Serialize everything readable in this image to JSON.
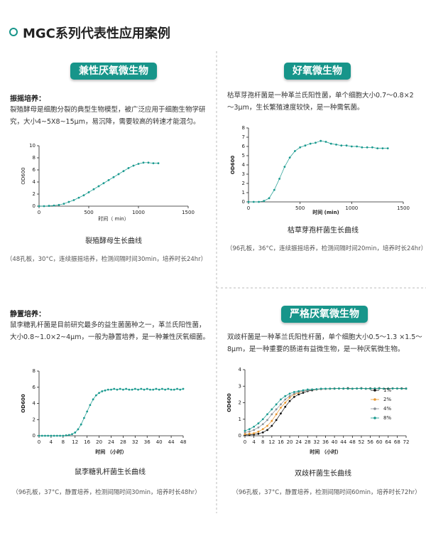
{
  "header": {
    "title": "MGC系列代表性应用案例"
  },
  "sections": [
    {
      "badge": "兼性厌氧微生物",
      "subheading": "振摇培养：",
      "description": "裂殖酵母是细胞分裂的典型生物模型，被广泛应用于细胞生物学研究，大小4~5X8~15μm，易沉降，需要较高的转速才能混匀。",
      "caption": "裂殖酵母生长曲线",
      "note": "（48孔板，30°C，连续振摇培养，检测间隔时间30min，培养时长24hr）"
    },
    {
      "badge": "好氧微生物",
      "description": "枯草芽孢杆菌是一种革兰氏阳性菌，单个细胞大小0.7～0.8×2～3μm，生长繁殖速度较快，是一种需氧菌。",
      "caption": "枯草芽孢杆菌生长曲线",
      "note": "（96孔板，36°C，连续振摇培养，检测间隔时间20min，培养时长24hr）"
    },
    {
      "subheading": "静置培养：",
      "description": "鼠李糖乳杆菌是目前研究最多的益生菌菌种之一，革兰氏阳性菌，大小0.8~1.0×2~4μm，一般为静置培养，是一种兼性厌氧细菌。",
      "caption": "鼠李糖乳杆菌生长曲线",
      "note": "（96孔板，37°C，静置培养，检测间隔时间30min，培养时长48hr）"
    },
    {
      "badge": "严格厌氧微生物",
      "description": "双歧杆菌是一种革兰氏阳性杆菌，单个细胞大小0.5～1.3 ×1.5～8μm，是一种重要的肠道有益微生物，是一种厌氧微生物。",
      "caption": "双歧杆菌生长曲线",
      "note": "（96孔板，37°C，静置培养，检测间隔时间60min，培养时长72hr）"
    }
  ],
  "chart_data": [
    {
      "type": "line",
      "x_label": "时间（ min）",
      "y_label": "OD600",
      "color": "#1a9a8f",
      "x": [
        0,
        50,
        100,
        150,
        200,
        250,
        300,
        350,
        400,
        450,
        500,
        550,
        600,
        650,
        700,
        750,
        800,
        850,
        900,
        950,
        1000,
        1050,
        1100,
        1150,
        1200
      ],
      "values": [
        0,
        0,
        0.05,
        0.1,
        0.2,
        0.4,
        0.7,
        1.0,
        1.4,
        1.8,
        2.3,
        2.8,
        3.3,
        3.8,
        4.3,
        4.8,
        5.3,
        5.8,
        6.3,
        6.7,
        7.0,
        7.2,
        7.2,
        7.1,
        7.1
      ],
      "xlim": [
        0,
        1500
      ],
      "ylim": [
        0,
        10
      ],
      "xticks": [
        0,
        500,
        1000,
        1500
      ],
      "yticks": [
        0,
        2,
        4,
        6,
        8,
        10
      ]
    },
    {
      "type": "line",
      "x_label": "时间 (min)",
      "y_label": "OD600",
      "color": "#1a9a8f",
      "x": [
        0,
        50,
        100,
        150,
        200,
        250,
        300,
        350,
        400,
        450,
        500,
        550,
        600,
        650,
        700,
        750,
        800,
        850,
        900,
        950,
        1000,
        1050,
        1100,
        1150,
        1200,
        1250,
        1300,
        1350
      ],
      "values": [
        0,
        0,
        0,
        0.1,
        0.4,
        1.3,
        2.5,
        3.8,
        4.8,
        5.5,
        5.9,
        6.1,
        6.3,
        6.4,
        6.6,
        6.5,
        6.3,
        6.2,
        6.1,
        6.1,
        6.0,
        6.0,
        5.9,
        5.9,
        5.9,
        5.8,
        5.8,
        5.8
      ],
      "xlim": [
        0,
        1500
      ],
      "ylim": [
        0,
        8
      ],
      "xticks": [
        0,
        500,
        1000,
        1500
      ],
      "yticks": [
        0,
        1,
        2,
        3,
        4,
        5,
        6,
        7,
        8
      ]
    },
    {
      "type": "line",
      "x_label": "时间 （小时）",
      "y_label": "OD600",
      "color": "#1a9a8f",
      "x": [
        0,
        1,
        2,
        3,
        4,
        5,
        6,
        7,
        8,
        9,
        10,
        11,
        12,
        13,
        14,
        15,
        16,
        17,
        18,
        19,
        20,
        21,
        22,
        23,
        24,
        25,
        26,
        27,
        28,
        29,
        30,
        31,
        32,
        33,
        34,
        35,
        36,
        37,
        38,
        39,
        40,
        41,
        42,
        43,
        44,
        45,
        46,
        47,
        48
      ],
      "values": [
        0,
        0,
        0,
        0,
        0,
        0,
        0,
        0,
        0,
        0.05,
        0.1,
        0.2,
        0.4,
        0.8,
        1.4,
        2.2,
        3.0,
        3.8,
        4.5,
        5.0,
        5.3,
        5.5,
        5.6,
        5.7,
        5.7,
        5.8,
        5.7,
        5.8,
        5.7,
        5.8,
        5.7,
        5.7,
        5.8,
        5.7,
        5.8,
        5.7,
        5.8,
        5.7,
        5.7,
        5.8,
        5.7,
        5.8,
        5.7,
        5.8,
        5.7,
        5.7,
        5.8,
        5.7,
        5.8
      ],
      "xlim": [
        0,
        48
      ],
      "ylim": [
        0,
        8
      ],
      "xticks": [
        0,
        4,
        8,
        12,
        16,
        20,
        24,
        28,
        32,
        36,
        40,
        44,
        48
      ],
      "yticks": [
        0,
        2,
        4,
        6,
        8
      ]
    },
    {
      "type": "line",
      "x_label": "时间 （小时）",
      "y_label": "OD600",
      "legend": "lower right",
      "x": [
        0,
        2,
        4,
        6,
        8,
        10,
        12,
        14,
        16,
        18,
        20,
        22,
        24,
        26,
        28,
        30,
        32,
        34,
        36,
        38,
        40,
        42,
        44,
        46,
        48,
        50,
        52,
        54,
        56,
        58,
        60,
        62,
        64,
        66,
        68,
        70,
        72
      ],
      "series": [
        {
          "name": "1%",
          "color": "#111111",
          "values": [
            0.05,
            0.05,
            0.08,
            0.12,
            0.2,
            0.35,
            0.6,
            0.95,
            1.35,
            1.75,
            2.1,
            2.35,
            2.5,
            2.6,
            2.7,
            2.75,
            2.8,
            2.82,
            2.84,
            2.85,
            2.86,
            2.86,
            2.85,
            2.88,
            2.85,
            2.86,
            2.88,
            2.85,
            2.87,
            2.86,
            2.88,
            2.85,
            2.86,
            2.87,
            2.86,
            2.87,
            2.86
          ]
        },
        {
          "name": "2%",
          "color": "#e8962e",
          "values": [
            0.1,
            0.12,
            0.15,
            0.25,
            0.4,
            0.6,
            0.9,
            1.3,
            1.7,
            2.0,
            2.3,
            2.5,
            2.6,
            2.7,
            2.75,
            2.8,
            2.8,
            2.82,
            2.84,
            2.85,
            2.85,
            2.86,
            2.86,
            2.85,
            2.85,
            2.86,
            2.86,
            2.85,
            2.85,
            2.86,
            2.86,
            2.85,
            2.85,
            2.86,
            2.86,
            2.85,
            2.85
          ]
        },
        {
          "name": "4%",
          "color": "#8a8f96",
          "values": [
            0.2,
            0.25,
            0.35,
            0.5,
            0.7,
            0.95,
            1.3,
            1.6,
            1.9,
            2.2,
            2.4,
            2.55,
            2.65,
            2.7,
            2.75,
            2.8,
            2.8,
            2.82,
            2.84,
            2.85,
            2.85,
            2.86,
            2.86,
            2.85,
            2.85,
            2.86,
            2.86,
            2.85,
            2.85,
            2.86,
            2.86,
            2.85,
            2.85,
            2.86,
            2.86,
            2.85,
            2.85
          ]
        },
        {
          "name": "8%",
          "color": "#1a9a8f",
          "values": [
            0.3,
            0.4,
            0.55,
            0.75,
            1.0,
            1.3,
            1.6,
            1.9,
            2.2,
            2.4,
            2.55,
            2.65,
            2.7,
            2.75,
            2.8,
            2.8,
            2.82,
            2.85,
            2.85,
            2.85,
            2.85,
            2.86,
            2.86,
            2.85,
            2.85,
            2.86,
            2.86,
            2.85,
            2.85,
            2.86,
            2.86,
            2.85,
            2.85,
            2.86,
            2.86,
            2.85,
            2.85
          ]
        }
      ],
      "xlim": [
        0,
        72
      ],
      "ylim": [
        0,
        4
      ],
      "xticks": [
        0,
        4,
        8,
        12,
        16,
        20,
        24,
        28,
        32,
        36,
        40,
        44,
        48,
        52,
        56,
        60,
        64,
        68,
        72
      ],
      "yticks": [
        0,
        1,
        2,
        3,
        4
      ]
    }
  ]
}
